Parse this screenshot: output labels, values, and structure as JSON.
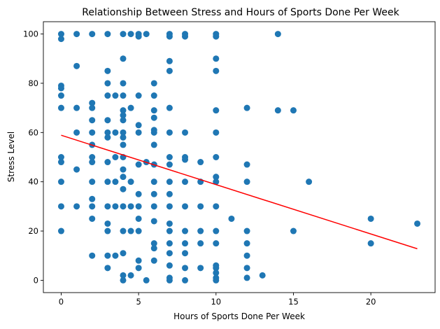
{
  "chart_data": {
    "type": "scatter",
    "title": "Relationship Between Stress and Hours of Sports Done Per Week",
    "xlabel": "Hours of Sports Done Per Week",
    "ylabel": "Stress Level",
    "xlim": [
      -1.15,
      24.15
    ],
    "ylim": [
      -5,
      105
    ],
    "xticks": [
      0,
      5,
      10,
      15,
      20
    ],
    "yticks": [
      0,
      20,
      40,
      60,
      80,
      100
    ],
    "grid": false,
    "colors": {
      "points": "#1f77b4",
      "trend": "#ff0000",
      "axes": "#000000"
    },
    "series": [
      {
        "kind": "points",
        "points": [
          [
            0,
            100
          ],
          [
            0,
            98
          ],
          [
            0,
            79
          ],
          [
            0,
            78
          ],
          [
            0,
            75
          ],
          [
            0,
            70
          ],
          [
            0,
            50
          ],
          [
            0,
            48
          ],
          [
            0,
            40
          ],
          [
            0,
            30
          ],
          [
            0,
            20
          ],
          [
            1,
            100
          ],
          [
            1,
            87
          ],
          [
            1,
            70
          ],
          [
            1,
            60
          ],
          [
            1,
            45
          ],
          [
            1,
            30
          ],
          [
            2,
            100
          ],
          [
            2,
            72
          ],
          [
            2,
            70
          ],
          [
            2,
            65
          ],
          [
            2,
            60
          ],
          [
            2,
            55
          ],
          [
            2,
            50
          ],
          [
            2,
            48
          ],
          [
            2,
            40
          ],
          [
            2,
            33
          ],
          [
            2,
            30
          ],
          [
            2,
            25
          ],
          [
            2,
            10
          ],
          [
            3,
            100
          ],
          [
            3,
            85
          ],
          [
            3,
            80
          ],
          [
            3,
            75
          ],
          [
            3,
            65
          ],
          [
            3,
            60
          ],
          [
            3,
            58
          ],
          [
            3,
            48
          ],
          [
            3,
            40
          ],
          [
            3,
            30
          ],
          [
            3,
            23
          ],
          [
            3,
            20
          ],
          [
            3,
            10
          ],
          [
            3,
            5
          ],
          [
            3.5,
            75
          ],
          [
            3.5,
            60
          ],
          [
            3.5,
            50
          ],
          [
            3.5,
            40
          ],
          [
            3.5,
            30
          ],
          [
            3.5,
            10
          ],
          [
            4,
            100
          ],
          [
            4,
            90
          ],
          [
            4,
            80
          ],
          [
            4,
            75
          ],
          [
            4,
            69
          ],
          [
            4,
            67
          ],
          [
            4,
            65
          ],
          [
            4,
            60
          ],
          [
            4,
            58
          ],
          [
            4,
            55
          ],
          [
            4,
            50
          ],
          [
            4,
            45
          ],
          [
            4,
            42
          ],
          [
            4,
            37
          ],
          [
            4,
            30
          ],
          [
            4,
            20
          ],
          [
            4,
            11
          ],
          [
            4,
            2
          ],
          [
            4,
            0
          ],
          [
            4.5,
            100
          ],
          [
            4.5,
            70
          ],
          [
            4.5,
            40
          ],
          [
            4.5,
            30
          ],
          [
            4.5,
            20
          ],
          [
            4.5,
            2
          ],
          [
            5,
            100
          ],
          [
            5,
            99
          ],
          [
            5,
            75
          ],
          [
            5,
            63
          ],
          [
            5,
            60
          ],
          [
            5,
            47
          ],
          [
            5,
            35
          ],
          [
            5,
            30
          ],
          [
            5,
            25
          ],
          [
            5,
            20
          ],
          [
            5,
            8
          ],
          [
            5,
            5
          ],
          [
            5.5,
            100
          ],
          [
            5.5,
            48
          ],
          [
            5.5,
            0
          ],
          [
            6,
            80
          ],
          [
            6,
            75
          ],
          [
            6,
            69
          ],
          [
            6,
            66
          ],
          [
            6,
            61
          ],
          [
            6,
            60
          ],
          [
            6,
            55
          ],
          [
            6,
            47
          ],
          [
            6,
            40
          ],
          [
            6,
            35
          ],
          [
            6,
            30
          ],
          [
            6,
            24
          ],
          [
            6,
            15
          ],
          [
            6,
            13
          ],
          [
            6,
            8
          ],
          [
            7,
            100
          ],
          [
            7,
            99
          ],
          [
            7,
            89
          ],
          [
            7,
            85
          ],
          [
            7,
            70
          ],
          [
            7,
            60
          ],
          [
            7,
            50
          ],
          [
            7,
            47
          ],
          [
            7,
            40
          ],
          [
            7,
            35
          ],
          [
            7,
            30
          ],
          [
            7,
            23
          ],
          [
            7,
            20
          ],
          [
            7,
            15
          ],
          [
            7,
            11
          ],
          [
            7,
            6
          ],
          [
            7,
            1
          ],
          [
            7,
            0
          ],
          [
            8,
            100
          ],
          [
            8,
            99
          ],
          [
            8,
            60
          ],
          [
            8,
            50
          ],
          [
            8,
            49
          ],
          [
            8,
            40
          ],
          [
            8,
            30
          ],
          [
            8,
            20
          ],
          [
            8,
            15
          ],
          [
            8,
            11
          ],
          [
            8,
            5
          ],
          [
            8,
            0
          ],
          [
            9,
            48
          ],
          [
            9,
            40
          ],
          [
            9,
            30
          ],
          [
            9,
            20
          ],
          [
            9,
            15
          ],
          [
            9,
            5
          ],
          [
            10,
            100
          ],
          [
            10,
            99
          ],
          [
            10,
            90
          ],
          [
            10,
            85
          ],
          [
            10,
            69
          ],
          [
            10,
            60
          ],
          [
            10,
            50
          ],
          [
            10,
            42
          ],
          [
            10,
            40
          ],
          [
            10,
            30
          ],
          [
            10,
            20
          ],
          [
            10,
            15
          ],
          [
            10,
            6
          ],
          [
            10,
            5
          ],
          [
            10,
            3
          ],
          [
            10,
            1
          ],
          [
            10,
            0
          ],
          [
            11,
            25
          ],
          [
            12,
            70
          ],
          [
            12,
            47
          ],
          [
            12,
            40
          ],
          [
            12,
            20
          ],
          [
            12,
            15
          ],
          [
            12,
            10
          ],
          [
            12,
            5
          ],
          [
            12,
            1
          ],
          [
            13,
            2
          ],
          [
            14,
            100
          ],
          [
            14,
            69
          ],
          [
            15,
            69
          ],
          [
            15,
            20
          ],
          [
            16,
            40
          ],
          [
            20,
            25
          ],
          [
            20,
            15
          ],
          [
            23,
            23
          ]
        ]
      },
      {
        "kind": "trend-line",
        "x": [
          0,
          23
        ],
        "y": [
          58.9,
          12.8
        ]
      }
    ]
  }
}
